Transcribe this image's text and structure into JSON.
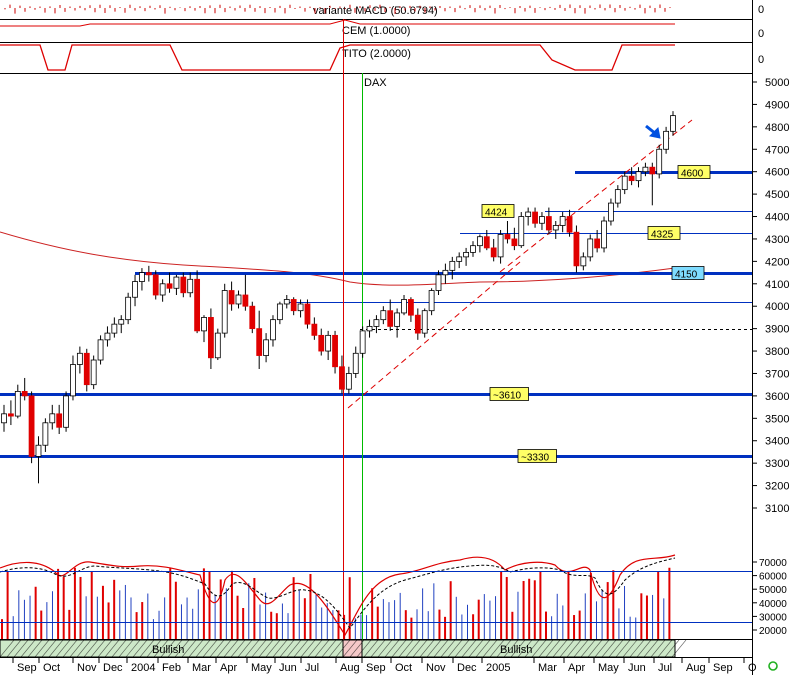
{
  "chart_data": {
    "type": "candlestick",
    "title": "DAX",
    "indicators": [
      {
        "name": "variante MACD (50.6794)",
        "axis_value": "0"
      },
      {
        "name": "CEM (1.0000)",
        "axis_value": "0"
      },
      {
        "name": "TITO (2.0000)",
        "axis_value": "0"
      }
    ],
    "y_axis": {
      "ticks": [
        3100,
        3200,
        3300,
        3400,
        3500,
        3600,
        3700,
        3800,
        3900,
        4000,
        4100,
        4200,
        4300,
        4400,
        4500,
        4600,
        4700,
        4800,
        4900,
        5000
      ],
      "ylim": [
        3060,
        5030
      ]
    },
    "x_axis": {
      "labels": [
        "Sep",
        "Oct",
        "Nov",
        "Dec",
        "2004",
        "Feb",
        "Mar",
        "Apr",
        "May",
        "Jun",
        "Jul",
        "Aug",
        "Sep",
        "Oct",
        "Nov",
        "Dec",
        "2005",
        "Mar",
        "Apr",
        "May",
        "Jun",
        "Jul",
        "Aug",
        "Sep",
        "O"
      ]
    },
    "horizontal_levels": [
      {
        "value": 4600,
        "label": "4600",
        "style": "thick-blue"
      },
      {
        "value": 4424,
        "label": "4424",
        "style": "thin-blue"
      },
      {
        "value": 4325,
        "label": "4325",
        "style": "thin-blue"
      },
      {
        "value": 4150,
        "label": "4150",
        "style": "thick-blue"
      },
      {
        "value": 4020,
        "label": "",
        "style": "thin-blue"
      },
      {
        "value": 3900,
        "label": "",
        "style": "dashed-black"
      },
      {
        "value": 3610,
        "label": "~3610",
        "style": "thick-blue"
      },
      {
        "value": 3330,
        "label": "~3330",
        "style": "thick-blue"
      }
    ],
    "candles": [
      [
        3480,
        3560,
        3440,
        3520
      ],
      [
        3520,
        3580,
        3470,
        3510
      ],
      [
        3510,
        3650,
        3500,
        3620
      ],
      [
        3620,
        3680,
        3580,
        3600
      ],
      [
        3600,
        3620,
        3300,
        3330
      ],
      [
        3330,
        3420,
        3210,
        3380
      ],
      [
        3380,
        3500,
        3350,
        3480
      ],
      [
        3480,
        3560,
        3450,
        3520
      ],
      [
        3520,
        3560,
        3430,
        3460
      ],
      [
        3460,
        3620,
        3440,
        3600
      ],
      [
        3600,
        3780,
        3580,
        3740
      ],
      [
        3740,
        3820,
        3700,
        3790
      ],
      [
        3790,
        3810,
        3620,
        3650
      ],
      [
        3650,
        3780,
        3630,
        3760
      ],
      [
        3760,
        3870,
        3740,
        3850
      ],
      [
        3850,
        3910,
        3820,
        3880
      ],
      [
        3880,
        3950,
        3860,
        3920
      ],
      [
        3920,
        3960,
        3880,
        3940
      ],
      [
        3940,
        4060,
        3920,
        4040
      ],
      [
        4040,
        4140,
        4000,
        4110
      ],
      [
        4110,
        4170,
        4070,
        4150
      ],
      [
        4150,
        4180,
        4110,
        4140
      ],
      [
        4140,
        4160,
        4030,
        4050
      ],
      [
        4050,
        4120,
        4020,
        4100
      ],
      [
        4100,
        4150,
        4060,
        4080
      ],
      [
        4080,
        4140,
        4050,
        4130
      ],
      [
        4130,
        4150,
        4040,
        4060
      ],
      [
        4060,
        4150,
        4040,
        4120
      ],
      [
        4120,
        4160,
        3880,
        3890
      ],
      [
        3890,
        3960,
        3840,
        3950
      ],
      [
        3950,
        3990,
        3720,
        3770
      ],
      [
        3770,
        3900,
        3760,
        3880
      ],
      [
        3880,
        4100,
        3860,
        4070
      ],
      [
        4070,
        4110,
        3980,
        4010
      ],
      [
        4010,
        4070,
        3990,
        4050
      ],
      [
        4050,
        4140,
        3980,
        4000
      ],
      [
        4000,
        4020,
        3880,
        3900
      ],
      [
        3900,
        3980,
        3720,
        3780
      ],
      [
        3780,
        3880,
        3750,
        3850
      ],
      [
        3850,
        3960,
        3820,
        3940
      ],
      [
        3940,
        4020,
        3920,
        4010
      ],
      [
        4010,
        4050,
        3990,
        4030
      ],
      [
        4030,
        4040,
        3960,
        3980
      ],
      [
        3980,
        4030,
        3950,
        4010
      ],
      [
        4010,
        4030,
        3900,
        3920
      ],
      [
        3920,
        3950,
        3850,
        3870
      ],
      [
        3870,
        3900,
        3780,
        3800
      ],
      [
        3800,
        3890,
        3760,
        3870
      ],
      [
        3870,
        3890,
        3700,
        3730
      ],
      [
        3730,
        3780,
        3610,
        3630
      ],
      [
        3630,
        3730,
        3610,
        3700
      ],
      [
        3700,
        3820,
        3680,
        3790
      ],
      [
        3790,
        3910,
        3770,
        3890
      ],
      [
        3890,
        3940,
        3860,
        3910
      ],
      [
        3910,
        3960,
        3880,
        3940
      ],
      [
        3940,
        4000,
        3920,
        3980
      ],
      [
        3980,
        4030,
        3890,
        3910
      ],
      [
        3910,
        3990,
        3860,
        3970
      ],
      [
        3970,
        4050,
        3960,
        4030
      ],
      [
        4030,
        4040,
        3930,
        3960
      ],
      [
        3960,
        3990,
        3850,
        3880
      ],
      [
        3880,
        3990,
        3860,
        3980
      ],
      [
        3980,
        4080,
        3960,
        4070
      ],
      [
        4070,
        4160,
        4050,
        4140
      ],
      [
        4140,
        4190,
        4100,
        4160
      ],
      [
        4160,
        4220,
        4120,
        4200
      ],
      [
        4200,
        4240,
        4170,
        4220
      ],
      [
        4220,
        4260,
        4180,
        4240
      ],
      [
        4240,
        4290,
        4220,
        4270
      ],
      [
        4270,
        4320,
        4240,
        4310
      ],
      [
        4310,
        4340,
        4250,
        4260
      ],
      [
        4260,
        4300,
        4200,
        4220
      ],
      [
        4220,
        4340,
        4190,
        4320
      ],
      [
        4320,
        4380,
        4280,
        4300
      ],
      [
        4300,
        4350,
        4250,
        4270
      ],
      [
        4270,
        4420,
        4260,
        4400
      ],
      [
        4400,
        4440,
        4360,
        4420
      ],
      [
        4420,
        4440,
        4350,
        4370
      ],
      [
        4370,
        4420,
        4340,
        4400
      ],
      [
        4400,
        4440,
        4320,
        4340
      ],
      [
        4340,
        4380,
        4300,
        4360
      ],
      [
        4360,
        4420,
        4330,
        4400
      ],
      [
        4400,
        4430,
        4310,
        4330
      ],
      [
        4330,
        4360,
        4150,
        4180
      ],
      [
        4180,
        4240,
        4160,
        4220
      ],
      [
        4220,
        4320,
        4200,
        4300
      ],
      [
        4300,
        4340,
        4240,
        4260
      ],
      [
        4260,
        4400,
        4240,
        4380
      ],
      [
        4380,
        4480,
        4360,
        4460
      ],
      [
        4460,
        4540,
        4440,
        4520
      ],
      [
        4520,
        4600,
        4500,
        4580
      ],
      [
        4580,
        4620,
        4540,
        4560
      ],
      [
        4560,
        4620,
        4530,
        4600
      ],
      [
        4600,
        4640,
        4580,
        4620
      ],
      [
        4620,
        4640,
        4450,
        4590
      ],
      [
        4590,
        4720,
        4570,
        4700
      ],
      [
        4700,
        4800,
        4680,
        4780
      ],
      [
        4780,
        4870,
        4760,
        4850
      ]
    ],
    "volume": {
      "ticks": [
        20000,
        30000,
        40000,
        50000,
        60000,
        70000
      ],
      "ylim": [
        16000,
        76000
      ]
    },
    "regime_labels": [
      "Bullish",
      "Bullish"
    ]
  }
}
